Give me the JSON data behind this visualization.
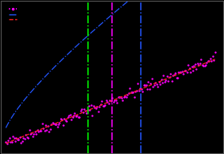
{
  "background_color": "#000000",
  "fig_facecolor": "#000000",
  "ax_facecolor": "#000000",
  "x_min": 0,
  "x_max": 14,
  "y_min": -1,
  "y_max": 9,
  "vline_green_x": 5.5,
  "vline_magenta_x": 7.0,
  "vline_blue_x": 8.8,
  "blue_a": 1.8,
  "blue_b": 0.55,
  "red_a": 0.42,
  "red_b": -0.5,
  "scatter_a": 0.42,
  "scatter_b": -0.5
}
